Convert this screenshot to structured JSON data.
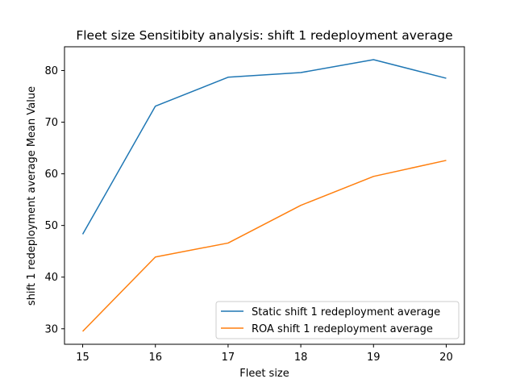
{
  "chart_data": {
    "type": "line",
    "title": "Fleet size Sensitibity analysis: shift 1 redeployment average",
    "xlabel": "Fleet size",
    "ylabel": "shift 1 redeployment average Mean Value",
    "x": [
      15,
      16,
      17,
      18,
      19,
      20
    ],
    "xticks": [
      "15",
      "16",
      "17",
      "18",
      "19",
      "20"
    ],
    "yticks": [
      "30",
      "40",
      "50",
      "60",
      "70",
      "80"
    ],
    "xlim": [
      14.75,
      20.25
    ],
    "ylim": [
      27.0,
      84.6
    ],
    "grid": false,
    "legend_position": "lower-right",
    "series": [
      {
        "name": "Static shift 1 redeployment average",
        "color": "#1f77b4",
        "values": [
          48.3,
          73.1,
          78.7,
          79.6,
          82.1,
          78.5
        ]
      },
      {
        "name": "ROA shift 1 redeployment average",
        "color": "#ff7f0e",
        "values": [
          29.5,
          43.9,
          46.6,
          53.9,
          59.5,
          62.6
        ]
      }
    ]
  }
}
